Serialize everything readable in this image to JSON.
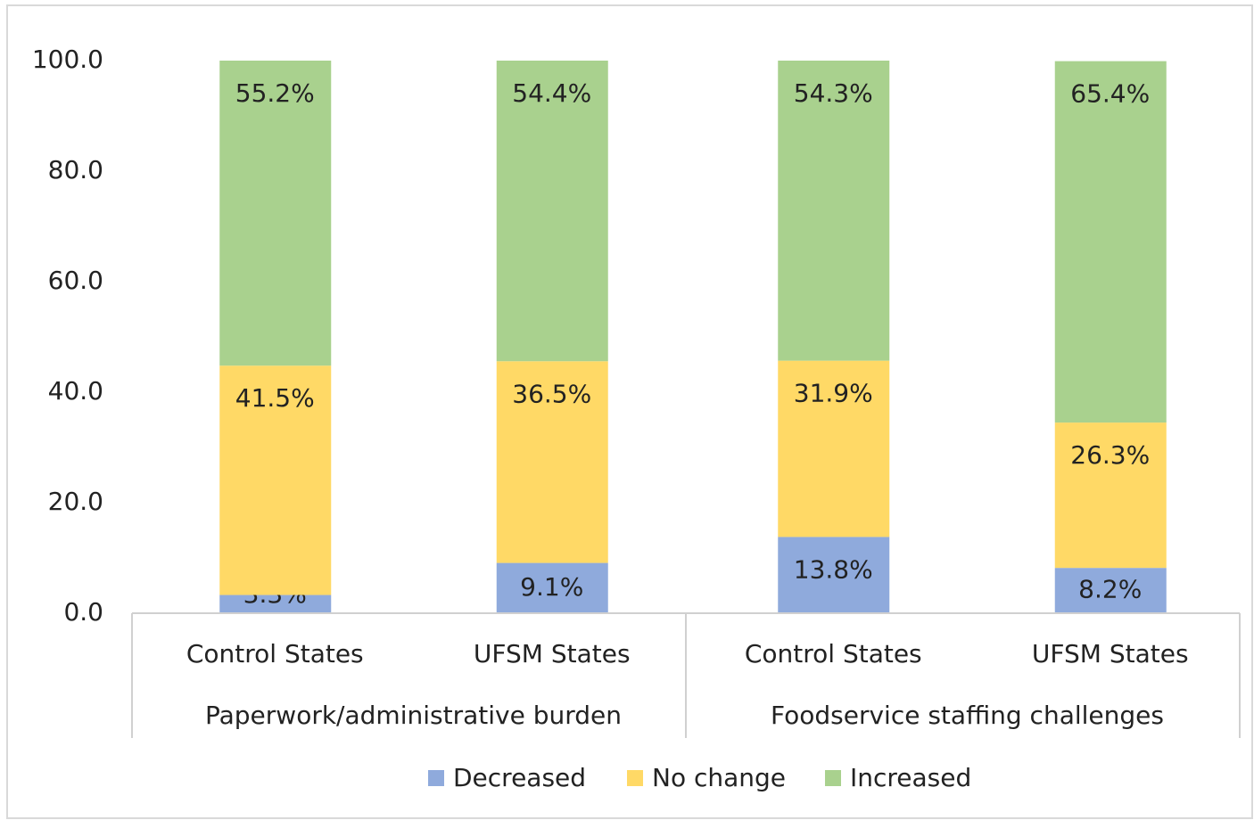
{
  "chart_data": {
    "type": "stacked_bar",
    "categories": [
      "Control States",
      "UFSM States",
      "Control States",
      "UFSM States"
    ],
    "groups": [
      "Paperwork/administrative burden",
      "Foodservice staffing challenges"
    ],
    "series": [
      {
        "name": "Decreased",
        "color": "#8faadc",
        "values": [
          3.3,
          9.1,
          13.8,
          8.2
        ],
        "value_labels": [
          "3.3%",
          "9.1%",
          "13.8%",
          "8.2%"
        ]
      },
      {
        "name": "No change",
        "color": "#ffd966",
        "values": [
          41.5,
          36.5,
          31.9,
          26.3
        ],
        "value_labels": [
          "41.5%",
          "36.5%",
          "31.9%",
          "26.3%"
        ]
      },
      {
        "name": "Increased",
        "color": "#a9d18e",
        "values": [
          55.2,
          54.4,
          54.3,
          65.4
        ],
        "value_labels": [
          "55.2%",
          "54.4%",
          "54.3%",
          "65.4%"
        ]
      }
    ],
    "ylim": [
      0,
      100
    ],
    "yticks": [
      {
        "value": 0,
        "label": "0.0"
      },
      {
        "value": 20,
        "label": "20.0"
      },
      {
        "value": 40,
        "label": "40.0"
      },
      {
        "value": 60,
        "label": "60.0"
      },
      {
        "value": 80,
        "label": "80.0"
      },
      {
        "value": 100,
        "label": "100.0"
      }
    ],
    "legend": "bottom"
  }
}
